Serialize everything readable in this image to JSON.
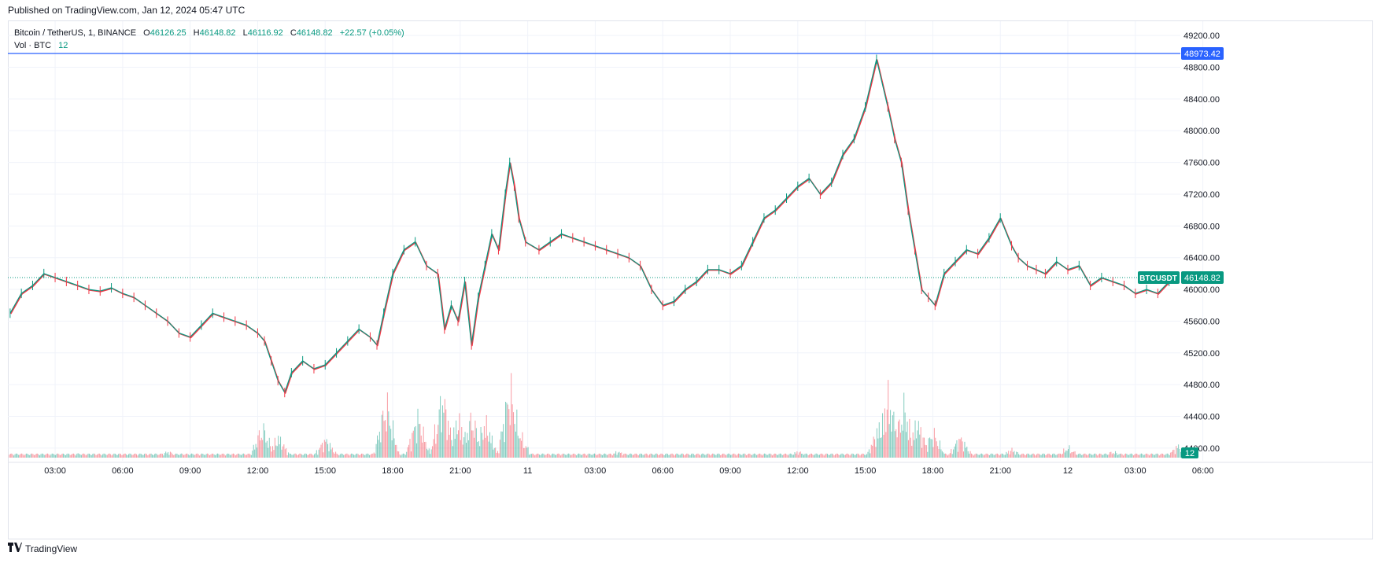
{
  "published": "Published on TradingView.com, Jan 12, 2024 05:47 UTC",
  "legend": {
    "symbol": "Bitcoin / TetherUS, 1, BINANCE",
    "open_key": "O",
    "open": "46126.25",
    "high_key": "H",
    "high": "46148.82",
    "low_key": "L",
    "low": "46116.92",
    "close_key": "C",
    "close": "46148.82",
    "change": "+22.57 (+0.05%)",
    "vol_label": "Vol · BTC",
    "vol_value": "12"
  },
  "footer": {
    "brand": "TradingView",
    "logo": "tradingview-logo-icon"
  },
  "colors": {
    "up": "#089981",
    "down": "#f23645",
    "horizontal_line": "#2962ff",
    "grid": "#f0f3fa"
  },
  "chart_data": {
    "type": "line",
    "title": "",
    "symbol": "BTCUSDT",
    "timeframe": "1",
    "y_axis": {
      "ticks": [
        "49200.00",
        "48800.00",
        "48400.00",
        "48000.00",
        "47600.00",
        "47200.00",
        "46800.00",
        "46400.00",
        "46000.00",
        "45600.00",
        "45200.00",
        "44800.00",
        "44400.00",
        "44000.00"
      ],
      "range": [
        43840,
        49380
      ]
    },
    "x_axis": {
      "ticks": [
        "03:00",
        "06:00",
        "09:00",
        "12:00",
        "15:00",
        "18:00",
        "21:00",
        "11",
        "03:00",
        "06:00",
        "09:00",
        "12:00",
        "15:00",
        "18:00",
        "21:00",
        "12",
        "03:00",
        "06:00"
      ],
      "range_hours": [
        0.9,
        53.0
      ]
    },
    "horizontal_line": {
      "value": 48973.42,
      "label": "48973.42"
    },
    "last_price": {
      "symbol_label": "BTCUSDT",
      "value": 46148.82,
      "label": "46148.82"
    },
    "volume_last": "12",
    "grid": true,
    "price_series": {
      "t_hours": [
        1.0,
        1.5,
        2.0,
        2.5,
        3.0,
        3.5,
        4.0,
        4.5,
        5.0,
        5.5,
        6.0,
        6.5,
        7.0,
        7.5,
        8.0,
        8.5,
        9.0,
        9.5,
        10.0,
        10.5,
        11.0,
        11.5,
        12.0,
        12.3,
        12.6,
        12.9,
        13.2,
        13.5,
        14.0,
        14.5,
        15.0,
        15.5,
        16.0,
        16.5,
        17.0,
        17.3,
        17.6,
        18.0,
        18.5,
        19.0,
        19.5,
        20.0,
        20.3,
        20.6,
        20.9,
        21.2,
        21.5,
        21.8,
        22.1,
        22.4,
        22.7,
        23.0,
        23.2,
        23.4,
        23.6,
        23.9,
        24.5,
        25.0,
        25.5,
        26.0,
        26.5,
        27.0,
        27.5,
        28.0,
        28.5,
        29.0,
        29.5,
        30.0,
        30.5,
        31.0,
        31.5,
        32.0,
        32.5,
        33.0,
        33.5,
        34.0,
        34.5,
        35.0,
        35.5,
        36.0,
        36.5,
        37.0,
        37.5,
        38.0,
        38.5,
        39.0,
        39.5,
        40.0,
        40.3,
        40.6,
        40.9,
        41.2,
        41.5,
        41.8,
        42.1,
        42.5,
        43.0,
        43.5,
        44.0,
        44.5,
        45.0,
        45.5,
        45.8,
        46.2,
        46.6,
        47.0,
        47.5,
        48.0,
        48.5,
        49.0,
        49.5,
        50.0,
        50.5,
        51.0,
        51.5,
        52.0,
        52.5,
        52.9
      ],
      "close": [
        45700,
        45950,
        46050,
        46200,
        46150,
        46100,
        46050,
        46000,
        45980,
        46020,
        45950,
        45900,
        45800,
        45700,
        45600,
        45450,
        45400,
        45550,
        45700,
        45650,
        45600,
        45550,
        45450,
        45350,
        45100,
        44850,
        44700,
        44950,
        45100,
        45000,
        45050,
        45200,
        45350,
        45500,
        45400,
        45300,
        45700,
        46200,
        46500,
        46600,
        46300,
        46200,
        45500,
        45800,
        45600,
        46100,
        45300,
        45900,
        46300,
        46700,
        46500,
        47200,
        47600,
        47300,
        46900,
        46600,
        46500,
        46600,
        46700,
        46650,
        46600,
        46550,
        46500,
        46450,
        46400,
        46300,
        46000,
        45800,
        45850,
        46000,
        46100,
        46250,
        46250,
        46200,
        46300,
        46600,
        46900,
        47000,
        47150,
        47300,
        47400,
        47200,
        47350,
        47700,
        47900,
        48300,
        48900,
        48300,
        47900,
        47600,
        47000,
        46500,
        46000,
        45900,
        45800,
        46200,
        46350,
        46500,
        46450,
        46650,
        46900,
        46550,
        46400,
        46300,
        46250,
        46200,
        46350,
        46250,
        46300,
        46050,
        46150,
        46100,
        46050,
        45950,
        46000,
        45950,
        46100,
        46148.82
      ],
      "color": "#089981"
    },
    "volume_series": {
      "t_hours": [
        1,
        4,
        8,
        12.2,
        12.9,
        15,
        17.7,
        19.1,
        20.2,
        20.9,
        21.5,
        22.1,
        23.2,
        23.6,
        28,
        36,
        39.6,
        40.0,
        40.3,
        40.7,
        41.3,
        42,
        43.2,
        45.5,
        48,
        50,
        52.9
      ],
      "values": [
        3,
        4,
        6,
        30,
        20,
        18,
        55,
        40,
        60,
        38,
        40,
        35,
        70,
        25,
        6,
        6,
        30,
        60,
        40,
        50,
        35,
        25,
        20,
        8,
        10,
        6,
        12
      ]
    }
  }
}
